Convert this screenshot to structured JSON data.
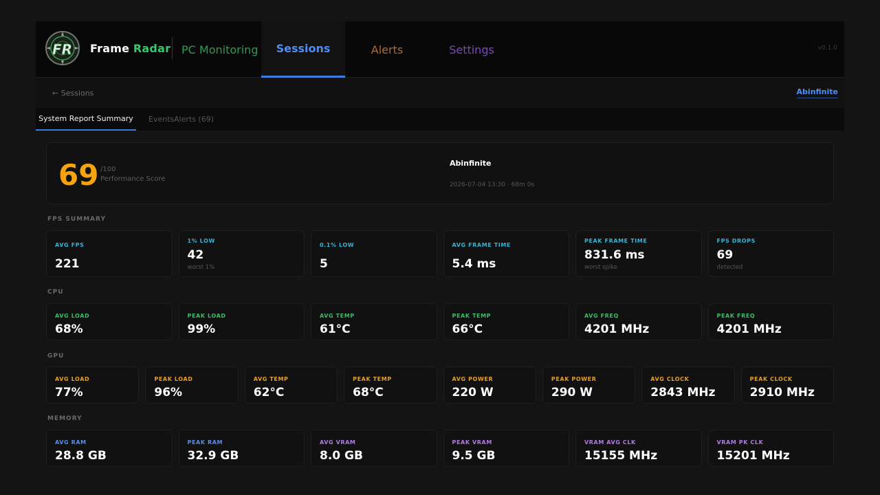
{
  "app": {
    "brand_word1": "Frame",
    "brand_word2": "Radar",
    "version": "v0.1.0"
  },
  "nav": {
    "monitoring": "PC Monitoring",
    "sessions": "Sessions",
    "alerts": "Alerts",
    "settings": "Settings",
    "active": "Sessions"
  },
  "subbar": {
    "back": "← Sessions",
    "user": "Abinfinite"
  },
  "tabs": {
    "summary": "System Report Summary",
    "events": "Events",
    "alerts": "Alerts (69)"
  },
  "score": {
    "value": "69",
    "max": "/100",
    "label": "Performance Score",
    "user": "Abinfinite",
    "meta": "2026-07-04 13:30  ·  68m 0s"
  },
  "fps": {
    "title": "FPS SUMMARY",
    "tiles": [
      {
        "label": "AVG FPS",
        "value": "221",
        "sub": ""
      },
      {
        "label": "1% LOW",
        "value": "42",
        "sub": "worst 1%"
      },
      {
        "label": "0.1% LOW",
        "value": "5",
        "sub": ""
      },
      {
        "label": "AVG FRAME TIME",
        "value": "5.4 ms",
        "sub": ""
      },
      {
        "label": "PEAK FRAME TIME",
        "value": "831.6 ms",
        "sub": "worst spike"
      },
      {
        "label": "FPS DROPS",
        "value": "69",
        "sub": "detected"
      }
    ]
  },
  "cpu": {
    "title": "CPU",
    "tiles": [
      {
        "label": "AVG LOAD",
        "value": "68%"
      },
      {
        "label": "PEAK LOAD",
        "value": "99%"
      },
      {
        "label": "AVG TEMP",
        "value": "61°C"
      },
      {
        "label": "PEAK TEMP",
        "value": "66°C"
      },
      {
        "label": "AVG FREQ",
        "value": "4201 MHz"
      },
      {
        "label": "PEAK FREQ",
        "value": "4201 MHz"
      }
    ]
  },
  "gpu": {
    "title": "GPU",
    "tiles": [
      {
        "label": "AVG LOAD",
        "value": "77%"
      },
      {
        "label": "PEAK LOAD",
        "value": "96%"
      },
      {
        "label": "AVG TEMP",
        "value": "62°C"
      },
      {
        "label": "PEAK TEMP",
        "value": "68°C"
      },
      {
        "label": "AVG POWER",
        "value": "220 W"
      },
      {
        "label": "PEAK POWER",
        "value": "290 W"
      },
      {
        "label": "AVG CLOCK",
        "value": "2843 MHz"
      },
      {
        "label": "PEAK CLOCK",
        "value": "2910 MHz"
      }
    ]
  },
  "memory": {
    "title": "MEMORY",
    "tiles": [
      {
        "label": "AVG RAM",
        "value": "28.8 GB"
      },
      {
        "label": "PEAK RAM",
        "value": "32.9 GB"
      },
      {
        "label": "AVG VRAM",
        "value": "8.0 GB"
      },
      {
        "label": "PEAK VRAM",
        "value": "9.5 GB"
      },
      {
        "label": "VRAM AVG CLK",
        "value": "15155 MHz"
      },
      {
        "label": "VRAM PK CLK",
        "value": "15201 MHz"
      }
    ]
  },
  "colors": {
    "fps_label": "#34b4d8",
    "cpu_label": "#3dbb68",
    "gpu_label": "#e5a02b",
    "ram_label": "#5b8fe8",
    "vram_label": "#b27ce6",
    "score": "#f5a311",
    "accent": "#3b7ee6"
  },
  "icons": {
    "logo": "frame-radar-logo-icon"
  }
}
